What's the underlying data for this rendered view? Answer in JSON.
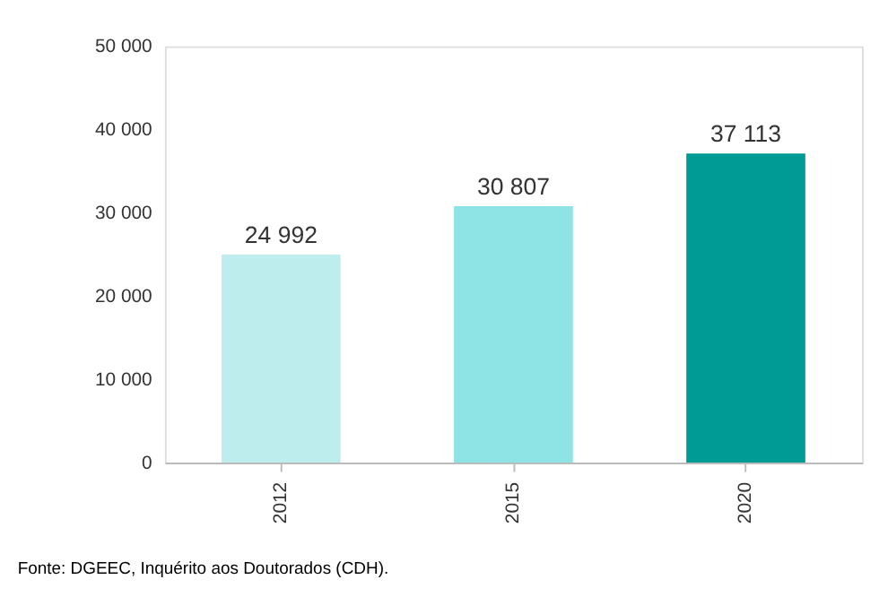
{
  "chart_data": {
    "type": "bar",
    "categories": [
      "2012",
      "2015",
      "2020"
    ],
    "values": [
      24992,
      30807,
      37113
    ],
    "colors": [
      "#bdeeed",
      "#8ee4e4",
      "#009b95"
    ],
    "ylim": [
      0,
      50000
    ],
    "yticks": [
      0,
      10000,
      20000,
      30000,
      40000,
      50000
    ],
    "grid": false,
    "data_labels": true,
    "annotations": [
      "Fonte: DGEEC, Inquérito aos Doutorados (CDH)."
    ]
  }
}
